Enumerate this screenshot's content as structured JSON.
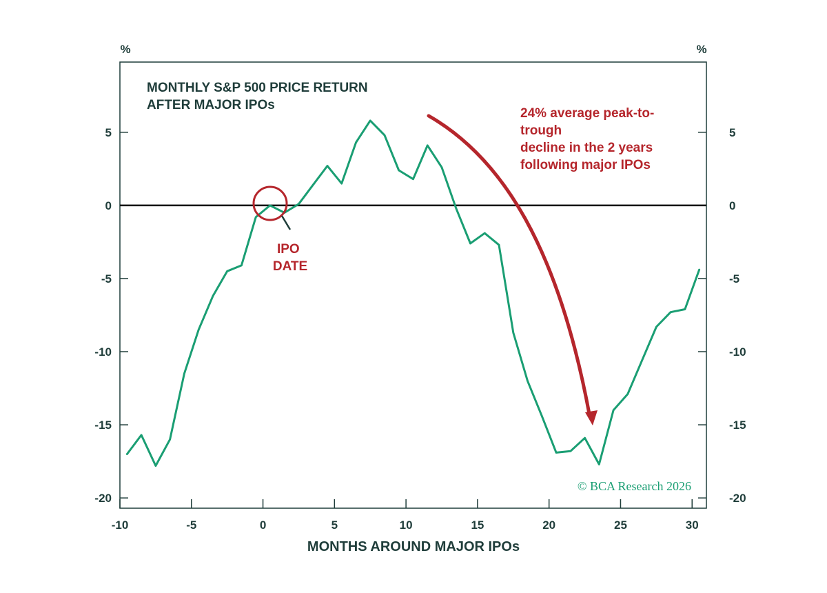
{
  "chart_data": {
    "type": "line",
    "title_lines": [
      "MONTHLY S&P 500 PRICE RETURN",
      "AFTER MAJOR IPOs"
    ],
    "xlabel": "MONTHS AROUND MAJOR IPOs",
    "y_unit_left": "%",
    "y_unit_right": "%",
    "xlim": [
      -10,
      31
    ],
    "ylim": [
      -20.7,
      9.8
    ],
    "x_ticks": [
      -10,
      -5,
      0,
      5,
      10,
      15,
      20,
      25,
      30
    ],
    "x_tick_labels": [
      "-10",
      "-5",
      "0",
      "5",
      "10",
      "15",
      "20",
      "25",
      "30"
    ],
    "y_ticks": [
      -20,
      -15,
      -10,
      -5,
      0,
      5
    ],
    "y_tick_labels": [
      "-20",
      "-15",
      "-10",
      "-5",
      "0",
      "5"
    ],
    "zero_line": true,
    "series": [
      {
        "color": "#1a9e73",
        "x": [
          -9.5,
          -8.5,
          -7.5,
          -6.5,
          -5.5,
          -4.5,
          -3.5,
          -2.5,
          -1.5,
          -0.5,
          0.5,
          1.5,
          2.5,
          3.5,
          4.5,
          5.5,
          6.5,
          7.5,
          8.5,
          9.5,
          10.5,
          11.5,
          12.5,
          13.5,
          14.5,
          15.5,
          16.5,
          17.5,
          18.5,
          19.5,
          20.5,
          21.5,
          22.5,
          23.5,
          24.5,
          25.5,
          26.5,
          27.5,
          28.5,
          29.5,
          30.5
        ],
        "y": [
          -17.0,
          -15.7,
          -17.8,
          -16.0,
          -11.5,
          -8.5,
          -6.2,
          -4.5,
          -4.1,
          -0.8,
          0.0,
          -0.5,
          0.1,
          1.4,
          2.7,
          1.5,
          4.3,
          5.8,
          4.8,
          2.4,
          1.8,
          4.1,
          2.6,
          -0.2,
          -2.6,
          -1.9,
          -2.7,
          -8.7,
          -12.0,
          -14.4,
          -16.9,
          -16.8,
          -15.9,
          -17.7,
          -14.0,
          -12.9,
          -10.6,
          -8.3,
          -7.3,
          -7.1,
          -4.4
        ]
      }
    ],
    "annotations": {
      "ipo_label_lines": [
        "IPO",
        "DATE"
      ],
      "decline_lines": [
        "24% average peak-to-",
        "trough",
        "decline in the 2 years",
        "following major IPOs"
      ]
    },
    "source": "© BCA Research 2026",
    "colors": {
      "line": "#1a9e73",
      "annotation": "#b5262c",
      "text": "#1f3d3a",
      "zero_line": "#000000",
      "axes": "#1f3d3a"
    }
  }
}
